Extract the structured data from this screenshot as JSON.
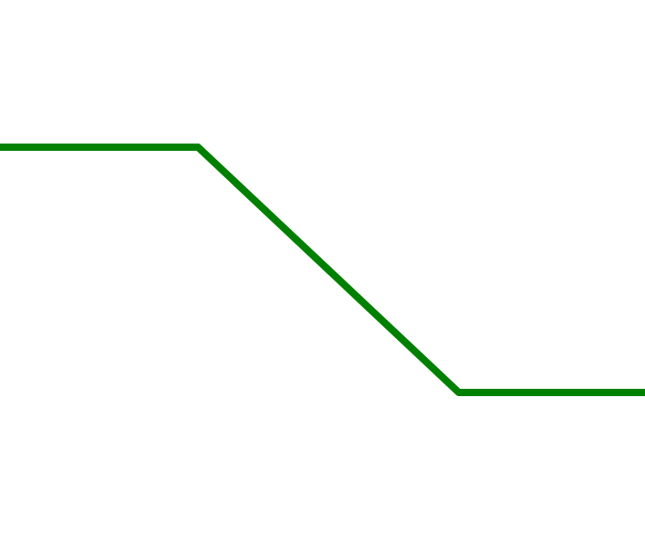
{
  "diagram": {
    "background_color": "#ffffff",
    "line_color": "#008000",
    "shape": "step-down line: flat high segment, diagonal descent, flat low segment"
  }
}
